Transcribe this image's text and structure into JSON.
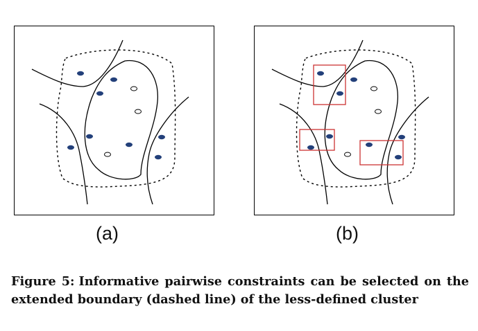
{
  "figure": {
    "panels": [
      {
        "label": "(a)"
      },
      {
        "label": "(b)"
      }
    ],
    "caption": {
      "number": "Figure 5:",
      "text": "Informative pairwise constraints can be selected on the extended boundary (dashed line) of the less-defined cluster"
    }
  },
  "colors": {
    "filled_point": "#23407a",
    "highlight_box": "#cc3333",
    "line": "#000000"
  }
}
